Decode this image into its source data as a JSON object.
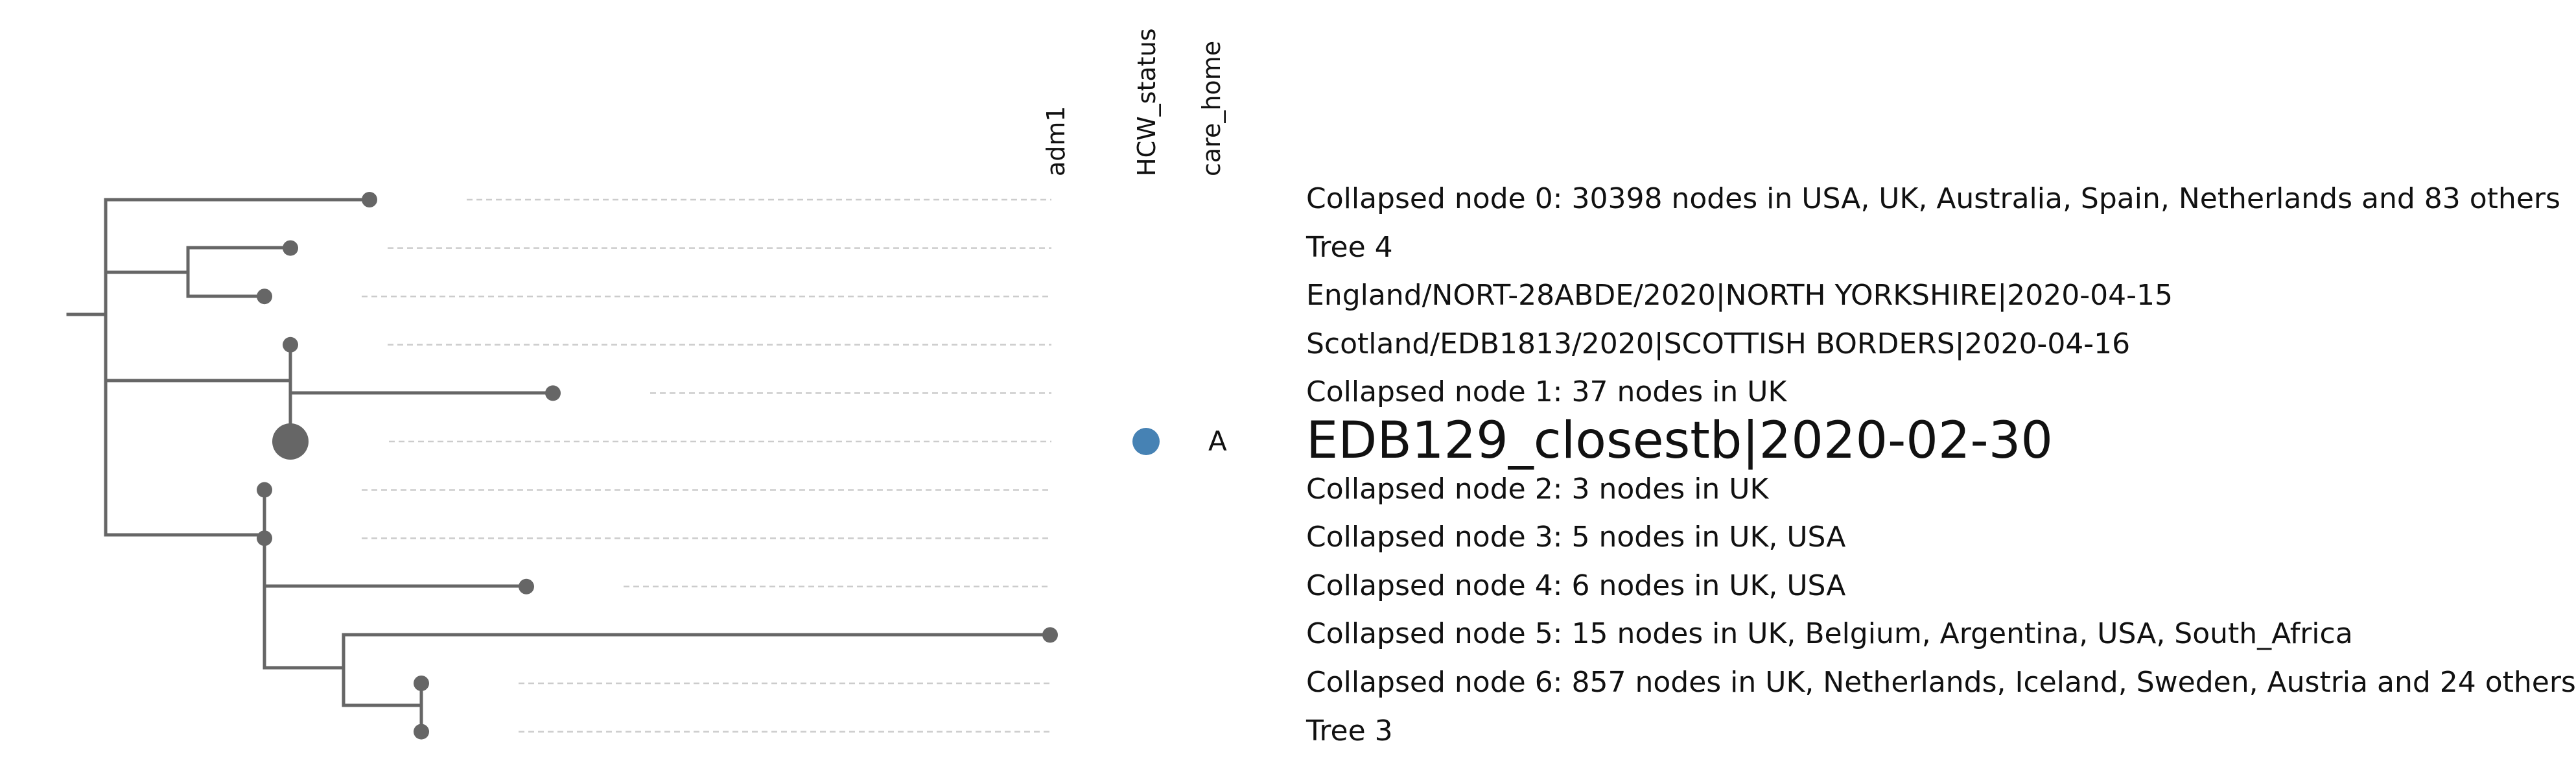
{
  "columns": {
    "adm1": "adm1",
    "hcw": "HCW_status",
    "care_home": "care_home"
  },
  "tips": [
    {
      "label": "Collapsed node 0: 30398 nodes in USA, UK, Australia, Spain, Netherlands and 83 others"
    },
    {
      "label": "Tree 4"
    },
    {
      "label": "England/NORT-28ABDE/2020|NORTH YORKSHIRE|2020-04-15"
    },
    {
      "label": "Scotland/EDB1813/2020|SCOTTISH BORDERS|2020-04-16"
    },
    {
      "label": "Collapsed node 1: 37 nodes in UK"
    },
    {
      "label": "EDB129_closestb|2020-02-30",
      "query": true,
      "hcw_color": "#4682b4",
      "care_home": "A"
    },
    {
      "label": "Collapsed node 2: 3 nodes in UK"
    },
    {
      "label": "Collapsed node 3: 5 nodes in UK, USA"
    },
    {
      "label": "Collapsed node 4: 6 nodes in UK, USA"
    },
    {
      "label": "Collapsed node 5: 15 nodes in UK, Belgium, Argentina, USA, South_Africa"
    },
    {
      "label": "Collapsed node 6: 857 nodes in UK, Netherlands, Iceland, Sweden, Austria and 24 others"
    },
    {
      "label": "Tree 3"
    }
  ],
  "colors": {
    "branch": "#666666",
    "guide": "#cccccc",
    "hcw_marker": "#4682b4"
  }
}
